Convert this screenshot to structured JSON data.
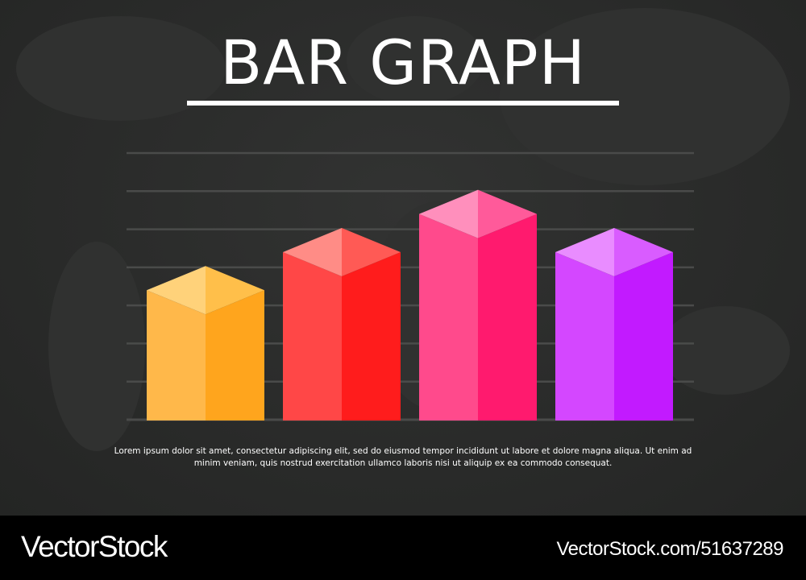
{
  "poster": {
    "title": "BAR GRAPH",
    "caption": "Lorem ipsum dolor sit amet, consectetur adipiscing elit, sed do eiusmod tempor incididunt ut labore et dolore magna aliqua. Ut enim ad minim veniam, quis nostrud exercitation ullamco laboris nisi ut aliquip ex ea commodo consequat."
  },
  "footer": {
    "brand": "VectorStock",
    "reference": "VectorStock.com/51637289"
  },
  "colors": {
    "background": "#2a2b2a",
    "gridline": "#4a4b4a",
    "text": "#ffffff",
    "footer": "#000000"
  },
  "chart_data": {
    "type": "bar",
    "title": "BAR GRAPH",
    "xlabel": "",
    "ylabel": "",
    "ylim": [
      0,
      7
    ],
    "grid": true,
    "legend": "none",
    "categories": [
      "",
      "",
      "",
      ""
    ],
    "values": [
      3.4,
      4.4,
      5.4,
      4.4
    ],
    "bar_colors": [
      {
        "top_light": "#ffd27a",
        "top_dark": "#ffbf4a",
        "front": "#ffb84a",
        "side": "#ffa51d"
      },
      {
        "top_light": "#ff8c86",
        "top_dark": "#ff5a55",
        "front": "#ff4747",
        "side": "#ff1c1c"
      },
      {
        "top_light": "#ff8fbc",
        "top_dark": "#ff5a9a",
        "front": "#ff4a8c",
        "side": "#ff1a6e"
      },
      {
        "top_light": "#e98cff",
        "top_dark": "#d95cff",
        "front": "#d447ff",
        "side": "#c21aff"
      }
    ]
  }
}
